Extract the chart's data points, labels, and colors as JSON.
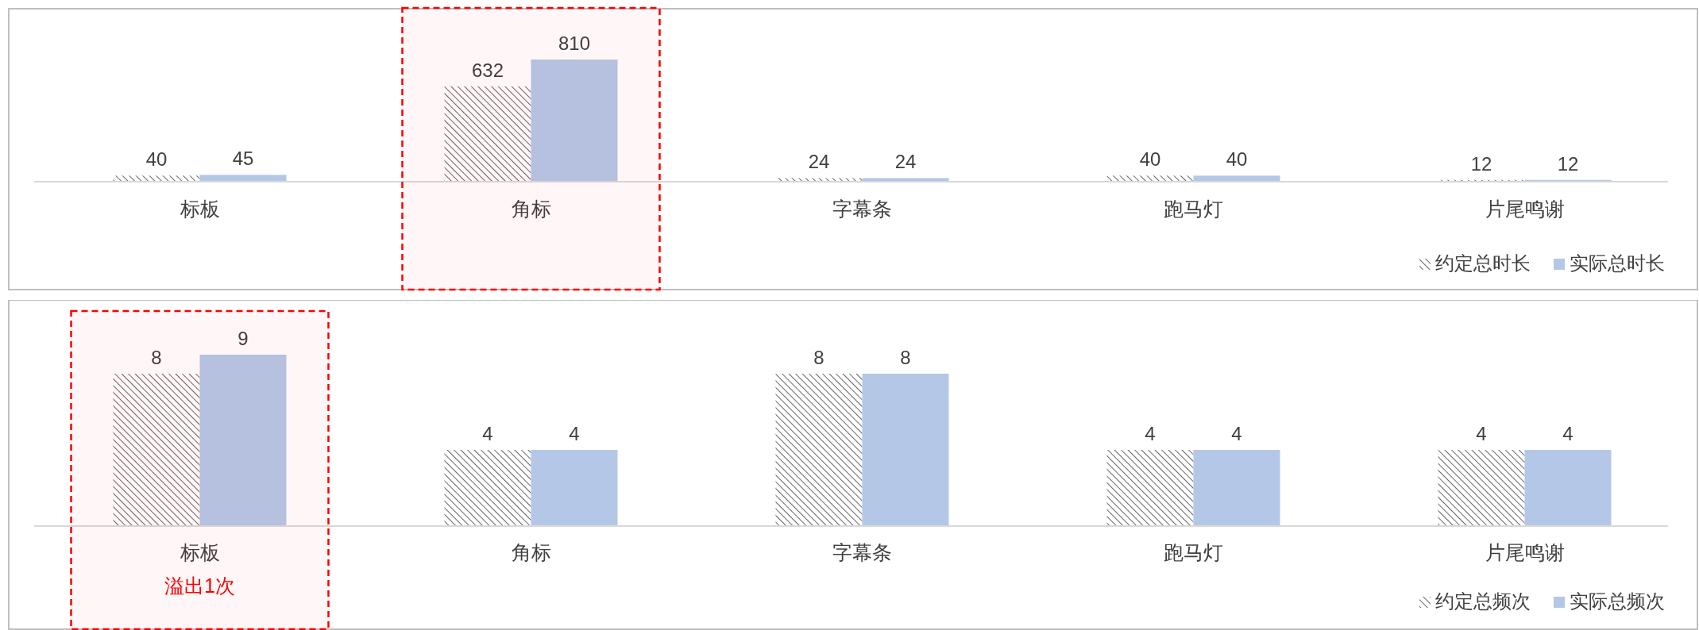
{
  "chart_data": [
    {
      "type": "bar",
      "categories": [
        "标板",
        "角标",
        "字幕条",
        "跑马灯",
        "片尾鸣谢"
      ],
      "data_labels": true,
      "legend": "bottom right",
      "series": [
        {
          "name": "约定总时长",
          "color": "#404040",
          "values": [
            40,
            632,
            24,
            40,
            12
          ]
        },
        {
          "name": "实际总时长",
          "color": "#b4c7e7",
          "values": [
            45,
            810,
            24,
            40,
            12
          ]
        }
      ],
      "bands": [
        {
          "axis": "x",
          "from": "角标",
          "to": "角标",
          "color": "#ff0000"
        }
      ]
    },
    {
      "type": "bar",
      "categories": [
        "标板",
        "角标",
        "字幕条",
        "跑马灯",
        "片尾鸣谢"
      ],
      "data_labels": true,
      "legend": "bottom right",
      "series": [
        {
          "name": "约定总频次",
          "color": "#404040",
          "values": [
            8,
            4,
            8,
            4,
            4
          ]
        },
        {
          "name": "实际总频次",
          "color": "#b4c7e7",
          "values": [
            9,
            4,
            8,
            4,
            4
          ]
        }
      ],
      "bands": [
        {
          "axis": "x",
          "from": "标板",
          "to": "标板",
          "color": "#ff0000"
        }
      ],
      "annotations": [
        "溢出1次"
      ]
    }
  ]
}
